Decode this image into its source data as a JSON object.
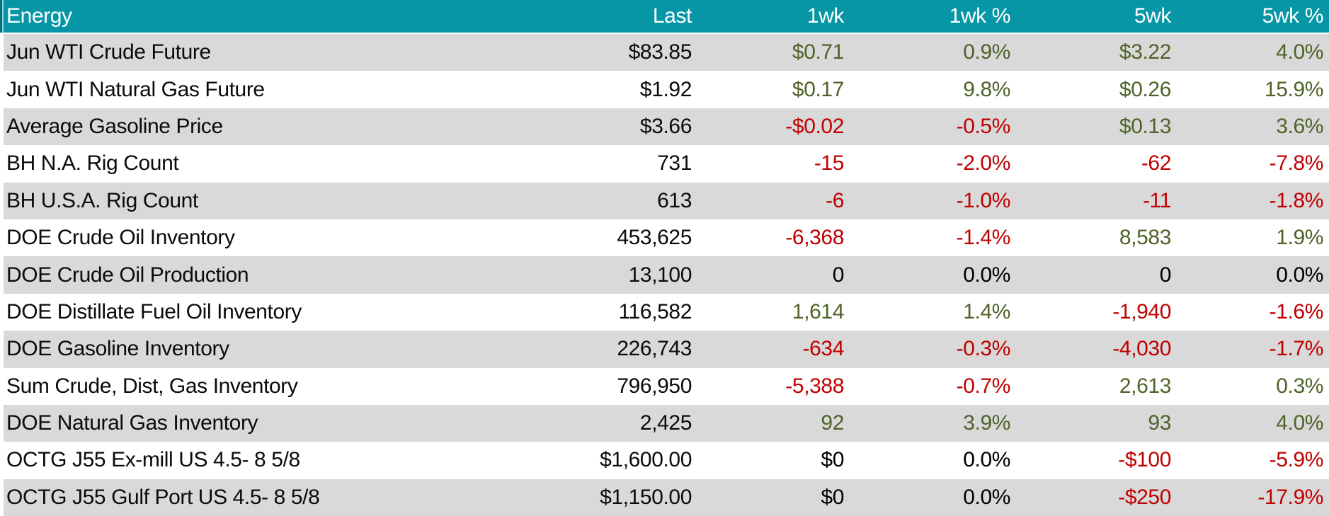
{
  "table": {
    "title_column": "Energy",
    "columns": [
      "Last",
      "1wk",
      "1wk %",
      "5wk",
      "5wk %"
    ],
    "colors": {
      "header_bg": "#0796A6",
      "header_text": "#FFFFFF",
      "row_stripe": "#D9D9D9",
      "positive": "#4F6228",
      "negative": "#C00000",
      "neutral": "#000000"
    },
    "rows": [
      {
        "label": "Jun WTI Crude Future",
        "last": "$83.85",
        "changes": [
          {
            "v": "$0.71",
            "c": "pos"
          },
          {
            "v": "0.9%",
            "c": "pos"
          },
          {
            "v": "$3.22",
            "c": "pos"
          },
          {
            "v": "4.0%",
            "c": "pos"
          }
        ]
      },
      {
        "label": "Jun WTI Natural Gas Future",
        "last": "$1.92",
        "changes": [
          {
            "v": "$0.17",
            "c": "pos"
          },
          {
            "v": "9.8%",
            "c": "pos"
          },
          {
            "v": "$0.26",
            "c": "pos"
          },
          {
            "v": "15.9%",
            "c": "pos"
          }
        ]
      },
      {
        "label": "Average Gasoline Price",
        "last": "$3.66",
        "changes": [
          {
            "v": "-$0.02",
            "c": "neg"
          },
          {
            "v": "-0.5%",
            "c": "neg"
          },
          {
            "v": "$0.13",
            "c": "pos"
          },
          {
            "v": "3.6%",
            "c": "pos"
          }
        ]
      },
      {
        "label": "BH N.A. Rig Count",
        "last": "731",
        "changes": [
          {
            "v": "-15",
            "c": "neg"
          },
          {
            "v": "-2.0%",
            "c": "neg"
          },
          {
            "v": "-62",
            "c": "neg"
          },
          {
            "v": "-7.8%",
            "c": "neg"
          }
        ]
      },
      {
        "label": "BH U.S.A. Rig Count",
        "last": "613",
        "changes": [
          {
            "v": "-6",
            "c": "neg"
          },
          {
            "v": "-1.0%",
            "c": "neg"
          },
          {
            "v": "-11",
            "c": "neg"
          },
          {
            "v": "-1.8%",
            "c": "neg"
          }
        ]
      },
      {
        "label": "DOE Crude Oil Inventory",
        "last": "453,625",
        "changes": [
          {
            "v": "-6,368",
            "c": "neg"
          },
          {
            "v": "-1.4%",
            "c": "neg"
          },
          {
            "v": "8,583",
            "c": "pos"
          },
          {
            "v": "1.9%",
            "c": "pos"
          }
        ]
      },
      {
        "label": "DOE Crude Oil Production",
        "last": "13,100",
        "changes": [
          {
            "v": "0",
            "c": "zero"
          },
          {
            "v": "0.0%",
            "c": "zero"
          },
          {
            "v": "0",
            "c": "zero"
          },
          {
            "v": "0.0%",
            "c": "zero"
          }
        ]
      },
      {
        "label": "DOE Distillate Fuel Oil Inventory",
        "last": "116,582",
        "changes": [
          {
            "v": "1,614",
            "c": "pos"
          },
          {
            "v": "1.4%",
            "c": "pos"
          },
          {
            "v": "-1,940",
            "c": "neg"
          },
          {
            "v": "-1.6%",
            "c": "neg"
          }
        ]
      },
      {
        "label": "DOE Gasoline Inventory",
        "last": "226,743",
        "changes": [
          {
            "v": "-634",
            "c": "neg"
          },
          {
            "v": "-0.3%",
            "c": "neg"
          },
          {
            "v": "-4,030",
            "c": "neg"
          },
          {
            "v": "-1.7%",
            "c": "neg"
          }
        ]
      },
      {
        "label": "Sum Crude, Dist, Gas Inventory",
        "last": "796,950",
        "changes": [
          {
            "v": "-5,388",
            "c": "neg"
          },
          {
            "v": "-0.7%",
            "c": "neg"
          },
          {
            "v": "2,613",
            "c": "pos"
          },
          {
            "v": "0.3%",
            "c": "pos"
          }
        ]
      },
      {
        "label": "DOE Natural Gas Inventory",
        "last": "2,425",
        "changes": [
          {
            "v": "92",
            "c": "pos"
          },
          {
            "v": "3.9%",
            "c": "pos"
          },
          {
            "v": "93",
            "c": "pos"
          },
          {
            "v": "4.0%",
            "c": "pos"
          }
        ]
      },
      {
        "label": "OCTG J55 Ex-mill US 4.5- 8 5/8",
        "last": "$1,600.00",
        "changes": [
          {
            "v": "$0",
            "c": "zero"
          },
          {
            "v": "0.0%",
            "c": "zero"
          },
          {
            "v": "-$100",
            "c": "neg"
          },
          {
            "v": "-5.9%",
            "c": "neg"
          }
        ]
      },
      {
        "label": "OCTG J55 Gulf Port US 4.5- 8 5/8",
        "last": "$1,150.00",
        "changes": [
          {
            "v": "$0",
            "c": "zero"
          },
          {
            "v": "0.0%",
            "c": "zero"
          },
          {
            "v": "-$250",
            "c": "neg"
          },
          {
            "v": "-17.9%",
            "c": "neg"
          }
        ]
      }
    ]
  }
}
